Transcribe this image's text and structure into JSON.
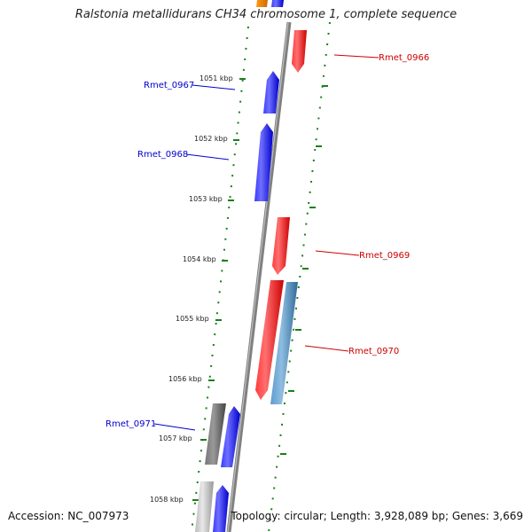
{
  "title": "Ralstonia metallidurans CH34 chromosome 1, complete sequence",
  "footer": {
    "accession": "Accession: NC_007973",
    "summary": "Topology: circular; Length: 3,928,089 bp; Genes: 3,669"
  },
  "colors": {
    "forward_gene": "#0000ff",
    "reverse_gene": "#ff0000",
    "rna_gene": "#4a86b8",
    "pseudo_gene": "#666666",
    "other_gene": "#ff8c00",
    "tick": "#1a7f1a",
    "backbone": "#808080"
  },
  "ticks": [
    "1051 kbp",
    "1052 kbp",
    "1053 kbp",
    "1054 kbp",
    "1055 kbp",
    "1056 kbp",
    "1057 kbp",
    "1058 kbp"
  ],
  "gene_labels": [
    {
      "text": "Rmet_0966",
      "strand": "reverse"
    },
    {
      "text": "Rmet_0967",
      "strand": "forward"
    },
    {
      "text": "Rmet_0968",
      "strand": "forward"
    },
    {
      "text": "Rmet_0969",
      "strand": "reverse"
    },
    {
      "text": "Rmet_0970",
      "strand": "reverse"
    },
    {
      "text": "Rmet_0971",
      "strand": "forward"
    }
  ]
}
